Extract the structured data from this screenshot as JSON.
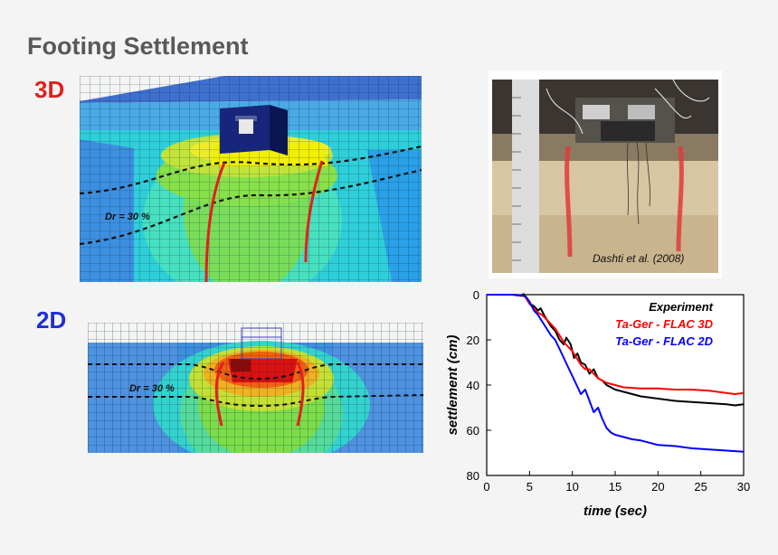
{
  "title": "Footing Settlement",
  "label_3d": "3D",
  "label_2d": "2D",
  "dr_3d": "Dr = 30 %",
  "dr_2d": "Dr = 30 %",
  "photo_credit": "Dashti et al. (2008)",
  "colors": {
    "experiment": "#000000",
    "flac3d": "#ff0000",
    "flac2d": "#0000ff",
    "label3d": "#e0201e",
    "label2d": "#1c2fd8"
  },
  "chart_data": {
    "type": "line",
    "xlabel": "time (sec)",
    "ylabel": "settlement (cm)",
    "xlim": [
      0,
      30
    ],
    "ylim": [
      0,
      80
    ],
    "y_inverted": true,
    "xticks": [
      "0",
      "5",
      "10",
      "15",
      "20",
      "25",
      "30"
    ],
    "yticks": [
      "0",
      "20",
      "40",
      "60",
      "80"
    ],
    "legend_position": "top-right",
    "series": [
      {
        "name": "Experiment",
        "color": "#000000",
        "x": [
          0,
          3,
          4,
          4.3,
          4.6,
          5,
          5.5,
          6,
          6.3,
          6.7,
          7,
          7.5,
          8,
          8.5,
          9,
          9.3,
          9.8,
          10.2,
          10.6,
          11,
          11.5,
          12,
          12.5,
          13,
          13.5,
          14,
          15,
          16,
          17,
          18,
          20,
          22,
          24,
          26,
          28,
          29,
          30
        ],
        "y": [
          0,
          0,
          0.5,
          -0.3,
          1.5,
          4,
          5,
          7,
          6,
          9,
          11,
          14,
          16,
          20,
          22,
          19,
          22,
          28,
          26,
          30,
          31,
          35,
          33,
          37,
          38,
          40,
          42,
          43,
          44,
          45,
          46,
          47,
          47.5,
          48,
          48.5,
          49,
          48.5
        ]
      },
      {
        "name": "Ta-Ger - FLAC 3D",
        "color": "#ff0000",
        "x": [
          0,
          3,
          4,
          4.5,
          5,
          5.5,
          6,
          6.5,
          7,
          7.5,
          8,
          8.5,
          9,
          9.5,
          10,
          10.5,
          11,
          11.5,
          12,
          12.5,
          13,
          14,
          15,
          16,
          18,
          20,
          22,
          24,
          26,
          28,
          29,
          30
        ],
        "y": [
          0,
          0,
          0.4,
          0.8,
          4,
          6,
          8,
          9,
          11,
          13,
          15,
          18,
          21,
          23,
          25,
          28,
          31,
          33,
          33,
          35,
          37,
          39,
          40,
          41,
          41.5,
          41.5,
          42,
          42,
          42.5,
          43.5,
          44,
          43.5
        ]
      },
      {
        "name": "Ta-Ger - FLAC 2D",
        "color": "#0000ff",
        "x": [
          0,
          3,
          4,
          4.5,
          5,
          5.5,
          6,
          6.5,
          7,
          7.5,
          8,
          8.5,
          9,
          9.5,
          10,
          10.5,
          11,
          11.5,
          12,
          12.5,
          13,
          13.5,
          14,
          14.5,
          15,
          16,
          17,
          18,
          19,
          20,
          22,
          24,
          26,
          28,
          30
        ],
        "y": [
          0,
          0,
          0.3,
          0.6,
          3,
          7,
          9,
          12,
          15,
          18,
          20,
          24,
          28,
          32,
          36,
          40,
          44,
          42,
          47,
          52,
          50,
          55,
          59,
          61,
          62,
          63,
          64,
          64.5,
          65.5,
          66.5,
          67,
          68,
          68.5,
          69,
          69.5
        ]
      }
    ]
  }
}
